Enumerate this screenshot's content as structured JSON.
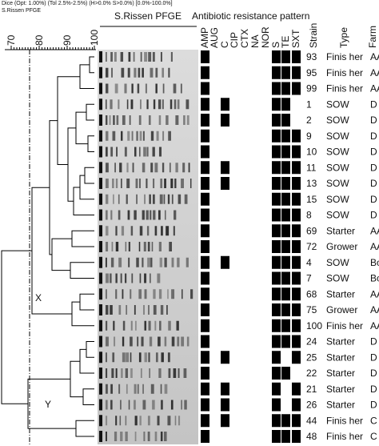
{
  "header": {
    "method": "Dice (Opt: 1.00%) (Tol 2.5%-2.5%) (H>0.0% S>0.0%) [0.0%-100.0%]",
    "subtitle": "S.Rissen PFGE"
  },
  "scale_ticks": [
    "70",
    "80",
    "90",
    "100"
  ],
  "gel_title": "S.Rissen PFGE",
  "resistance_title": "Antibiotic resistance pattern",
  "antibiotics": [
    "AMP",
    "AUG",
    "C",
    "CIP",
    "CTX",
    "NA",
    "NOR",
    "S",
    "TE",
    "SXT"
  ],
  "columns": {
    "strain": "Strain",
    "type": "Type",
    "farm": "Farm"
  },
  "cluster_labels": [
    "X",
    "Y"
  ],
  "rows": [
    {
      "strain": "93",
      "type": "Finis her",
      "farm": "AA",
      "resistant": [
        true,
        false,
        false,
        false,
        false,
        false,
        false,
        true,
        true,
        true
      ]
    },
    {
      "strain": "95",
      "type": "Finis her",
      "farm": "AA",
      "resistant": [
        true,
        false,
        false,
        false,
        false,
        false,
        false,
        true,
        true,
        true
      ]
    },
    {
      "strain": "99",
      "type": "Finis her",
      "farm": "AA",
      "resistant": [
        true,
        false,
        false,
        false,
        false,
        false,
        false,
        true,
        true,
        true
      ]
    },
    {
      "strain": "1",
      "type": "SOW",
      "farm": "D",
      "resistant": [
        true,
        false,
        true,
        false,
        false,
        false,
        false,
        true,
        true,
        false
      ]
    },
    {
      "strain": "2",
      "type": "SOW",
      "farm": "D",
      "resistant": [
        true,
        false,
        true,
        false,
        false,
        false,
        false,
        true,
        true,
        false
      ]
    },
    {
      "strain": "9",
      "type": "SOW",
      "farm": "D",
      "resistant": [
        true,
        false,
        false,
        false,
        false,
        false,
        false,
        true,
        true,
        true
      ]
    },
    {
      "strain": "10",
      "type": "SOW",
      "farm": "D",
      "resistant": [
        true,
        false,
        false,
        false,
        false,
        false,
        false,
        true,
        true,
        true
      ]
    },
    {
      "strain": "11",
      "type": "SOW",
      "farm": "D",
      "resistant": [
        true,
        false,
        true,
        false,
        false,
        false,
        false,
        true,
        true,
        true
      ]
    },
    {
      "strain": "13",
      "type": "SOW",
      "farm": "D",
      "resistant": [
        true,
        false,
        true,
        false,
        false,
        false,
        false,
        true,
        true,
        true
      ]
    },
    {
      "strain": "15",
      "type": "SOW",
      "farm": "D",
      "resistant": [
        true,
        false,
        false,
        false,
        false,
        false,
        false,
        true,
        true,
        true
      ]
    },
    {
      "strain": "8",
      "type": "SOW",
      "farm": "D",
      "resistant": [
        true,
        false,
        false,
        false,
        false,
        false,
        false,
        true,
        true,
        true
      ]
    },
    {
      "strain": "69",
      "type": "Starter",
      "farm": "AA",
      "resistant": [
        true,
        false,
        false,
        false,
        false,
        false,
        false,
        true,
        true,
        true
      ]
    },
    {
      "strain": "72",
      "type": "Grower",
      "farm": "AA",
      "resistant": [
        true,
        false,
        false,
        false,
        false,
        false,
        false,
        true,
        true,
        true
      ]
    },
    {
      "strain": "4",
      "type": "SOW",
      "farm": "Bo",
      "resistant": [
        true,
        false,
        true,
        false,
        false,
        false,
        false,
        true,
        true,
        true
      ]
    },
    {
      "strain": "7",
      "type": "SOW",
      "farm": "Bo",
      "resistant": [
        true,
        false,
        false,
        false,
        false,
        false,
        false,
        true,
        true,
        true
      ]
    },
    {
      "strain": "68",
      "type": "Starter",
      "farm": "AA",
      "resistant": [
        true,
        false,
        false,
        false,
        false,
        false,
        false,
        true,
        true,
        true
      ]
    },
    {
      "strain": "75",
      "type": "Grower",
      "farm": "AA",
      "resistant": [
        true,
        false,
        false,
        false,
        false,
        false,
        false,
        true,
        true,
        true
      ]
    },
    {
      "strain": "100",
      "type": "Finis her",
      "farm": "AA",
      "resistant": [
        true,
        false,
        false,
        false,
        false,
        false,
        false,
        true,
        true,
        true
      ]
    },
    {
      "strain": "24",
      "type": "Starter",
      "farm": "D",
      "resistant": [
        true,
        false,
        false,
        false,
        false,
        false,
        false,
        true,
        true,
        true
      ]
    },
    {
      "strain": "25",
      "type": "Starter",
      "farm": "D",
      "resistant": [
        true,
        false,
        true,
        false,
        false,
        false,
        false,
        true,
        false,
        true
      ]
    },
    {
      "strain": "22",
      "type": "Starter",
      "farm": "D",
      "resistant": [
        true,
        false,
        false,
        false,
        false,
        false,
        false,
        true,
        true,
        false
      ]
    },
    {
      "strain": "21",
      "type": "Starter",
      "farm": "D",
      "resistant": [
        true,
        false,
        true,
        false,
        false,
        false,
        false,
        true,
        false,
        true
      ]
    },
    {
      "strain": "26",
      "type": "Starter",
      "farm": "D",
      "resistant": [
        true,
        false,
        true,
        false,
        false,
        false,
        false,
        true,
        false,
        true
      ]
    },
    {
      "strain": "44",
      "type": "Finis her",
      "farm": "C",
      "resistant": [
        true,
        false,
        true,
        false,
        false,
        false,
        false,
        true,
        true,
        true
      ]
    },
    {
      "strain": "48",
      "type": "Finis her",
      "farm": "C",
      "resistant": [
        true,
        false,
        false,
        false,
        false,
        false,
        false,
        true,
        true,
        true
      ]
    }
  ]
}
